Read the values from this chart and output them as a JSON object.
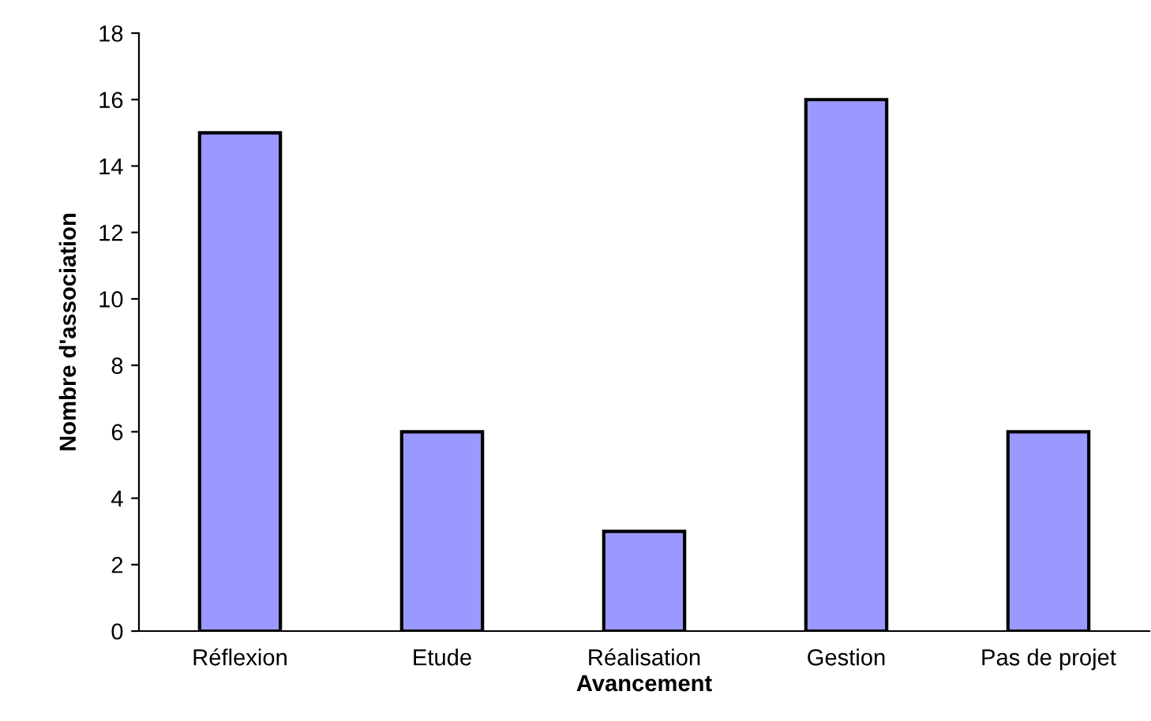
{
  "chart_data": {
    "type": "bar",
    "xlabel": "Avancement",
    "ylabel": "Nombre d'association",
    "categories": [
      "Réflexion",
      "Etude",
      "Réalisation",
      "Gestion",
      "Pas de projet"
    ],
    "values": [
      15,
      6,
      3,
      16,
      6
    ],
    "color": "#9999ff",
    "ylim": [
      0,
      18
    ],
    "yticks": [
      0,
      2,
      4,
      6,
      8,
      10,
      12,
      14,
      16,
      18
    ],
    "grid": false,
    "legend": false
  }
}
